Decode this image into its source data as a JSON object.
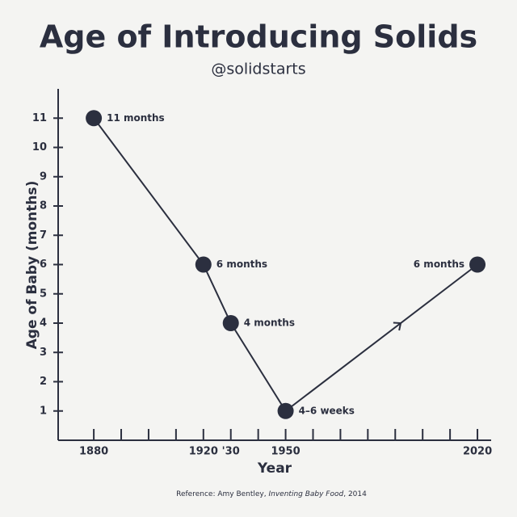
{
  "chart_data": {
    "type": "line",
    "title": "Age of Introducing Solids",
    "subtitle": "@solidstarts",
    "x_label": "Year",
    "y_label": "Age of Baby (months)",
    "x": [
      1880,
      1920,
      1930,
      1950,
      2020
    ],
    "series": [
      {
        "name": "Age of Baby (months)",
        "color": "#2b2f3f",
        "values": [
          11,
          6,
          4,
          1,
          6
        ],
        "value_labels": [
          "11 months",
          "6 months",
          "4 months",
          "4–6 weeks",
          "6 months"
        ]
      }
    ],
    "xlim": [
      1867,
      2025
    ],
    "xticks": [
      1880,
      1920,
      {
        "value": 1930,
        "label": "'30"
      },
      1950,
      2020
    ],
    "xminorticks": [
      1890,
      1900,
      1910,
      1940,
      1960,
      1970,
      1980,
      1990,
      2000,
      2010
    ],
    "ylim": [
      0,
      12
    ],
    "yticks": [
      1,
      2,
      3,
      4,
      5,
      6,
      7,
      8,
      9,
      10,
      11
    ],
    "grid": false,
    "reference": {
      "prefix": "Reference: Amy Bentley, ",
      "title": "Inventing Baby Food",
      "suffix": ", 2014"
    }
  }
}
